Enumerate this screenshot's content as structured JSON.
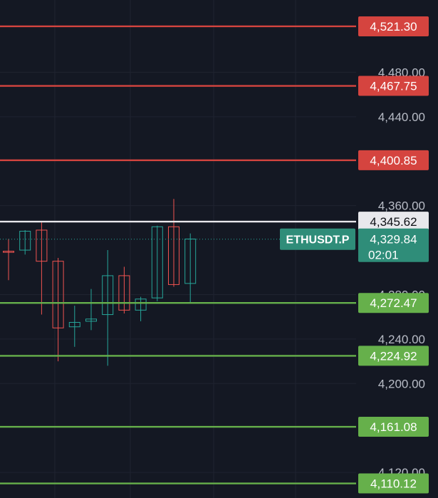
{
  "chart_data": {
    "type": "candlestick",
    "symbol": "ETHUSDT.P",
    "last_price": "4,329.84",
    "countdown": "02:01",
    "ylim": [
      4097,
      4545
    ],
    "grid": true,
    "y_ticks": [
      {
        "value": 4480,
        "label": "4,480.00"
      },
      {
        "value": 4440,
        "label": "4,440.00"
      },
      {
        "value": 4360,
        "label": "4,360.00"
      },
      {
        "value": 4280,
        "label": "4,280.00"
      },
      {
        "value": 4240,
        "label": "4,240.00"
      },
      {
        "value": 4200,
        "label": "4,200.00"
      },
      {
        "value": 4120,
        "label": "4,120.00"
      }
    ],
    "levels": [
      {
        "value": 4521.3,
        "label": "4,521.30",
        "kind": "resistance"
      },
      {
        "value": 4467.75,
        "label": "4,467.75",
        "kind": "resistance"
      },
      {
        "value": 4400.85,
        "label": "4,400.85",
        "kind": "resistance"
      },
      {
        "value": 4345.62,
        "label": "4,345.62",
        "kind": "pivot"
      },
      {
        "value": 4272.47,
        "label": "4,272.47",
        "kind": "support"
      },
      {
        "value": 4224.92,
        "label": "4,224.92",
        "kind": "support"
      },
      {
        "value": 4161.08,
        "label": "4,161.08",
        "kind": "support"
      },
      {
        "value": 4110.12,
        "label": "4,110.12",
        "kind": "support"
      }
    ],
    "candles": [
      {
        "open": 4319,
        "high": 4330,
        "low": 4293,
        "close": 4318
      },
      {
        "open": 4320,
        "high": 4338,
        "low": 4316,
        "close": 4337
      },
      {
        "open": 4338,
        "high": 4346,
        "low": 4262,
        "close": 4310
      },
      {
        "open": 4310,
        "high": 4313,
        "low": 4220,
        "close": 4250
      },
      {
        "open": 4251,
        "high": 4270,
        "low": 4233,
        "close": 4255
      },
      {
        "open": 4256,
        "high": 4285,
        "low": 4248,
        "close": 4258
      },
      {
        "open": 4262,
        "high": 4320,
        "low": 4216,
        "close": 4297
      },
      {
        "open": 4297,
        "high": 4305,
        "low": 4263,
        "close": 4266
      },
      {
        "open": 4266,
        "high": 4278,
        "low": 4256,
        "close": 4276
      },
      {
        "open": 4277,
        "high": 4342,
        "low": 4274,
        "close": 4341
      },
      {
        "open": 4341,
        "high": 4366,
        "low": 4287,
        "close": 4289
      },
      {
        "open": 4290,
        "high": 4335,
        "low": 4272,
        "close": 4330
      }
    ]
  },
  "colors": {
    "background": "#141823",
    "grid": "#1f2330",
    "up": "#26a69a",
    "down": "#ef5350",
    "resistance": "#d5443f",
    "support": "#66b04b",
    "pivot": "#e8e8ec",
    "last_price_tag": "#2f8d79"
  }
}
